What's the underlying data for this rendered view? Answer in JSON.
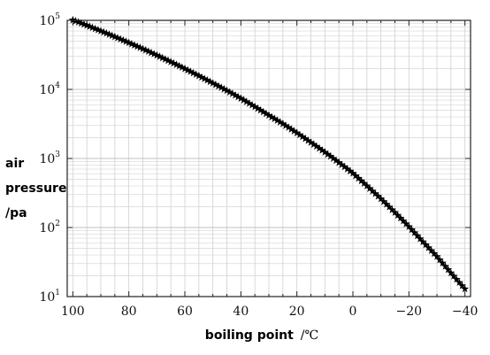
{
  "chart_data": {
    "type": "scatter",
    "title": "",
    "xlabel": "boiling point",
    "xunit": "/℃",
    "ylabel_lines": [
      "air",
      "pressure",
      "/pa"
    ],
    "x_reversed": true,
    "xlim": [
      102,
      -42
    ],
    "ylim": [
      10,
      100000
    ],
    "yscale": "log",
    "grid": true,
    "marker": "star",
    "x_ticks": [
      100,
      80,
      60,
      40,
      20,
      0,
      -20,
      -40
    ],
    "x_tick_labels": [
      "100",
      "80",
      "60",
      "40",
      "20",
      "0",
      "−20",
      "−40"
    ],
    "y_ticks": [
      {
        "value": 100000,
        "base": "10",
        "exp": "5"
      },
      {
        "value": 10000,
        "base": "10",
        "exp": "4"
      },
      {
        "value": 1000,
        "base": "10",
        "exp": "3"
      },
      {
        "value": 100,
        "base": "10",
        "exp": "2"
      },
      {
        "value": 10,
        "base": "10",
        "exp": "1"
      }
    ],
    "series": [
      {
        "x": [
          100,
          95,
          90,
          85,
          80,
          75,
          70,
          65,
          60,
          55,
          50,
          45,
          40,
          35,
          30,
          25,
          20,
          15,
          10,
          5,
          0,
          -5,
          -10,
          -15,
          -20,
          -25,
          -30,
          -35,
          -40
        ],
        "y": [
          101325,
          84500,
          70100,
          57800,
          47400,
          38600,
          31200,
          25000,
          19900,
          15700,
          12300,
          9600,
          7400,
          5600,
          4200,
          3170,
          2340,
          1700,
          1230,
          870,
          610,
          400,
          260,
          165,
          103,
          62,
          38,
          22,
          12.9
        ]
      }
    ]
  }
}
